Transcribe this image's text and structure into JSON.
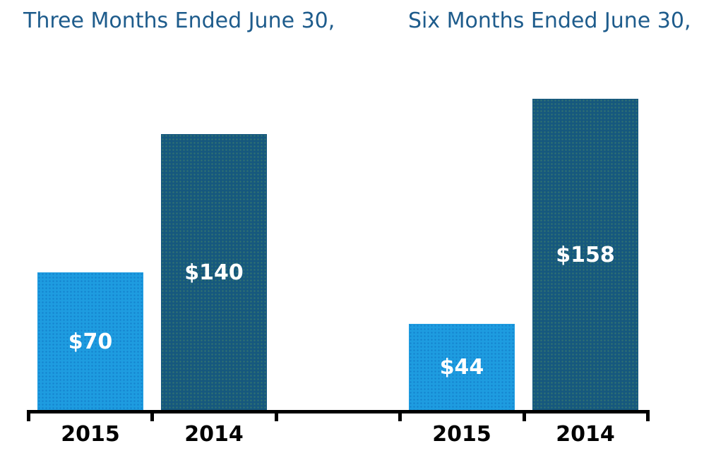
{
  "chart_data": {
    "type": "bar",
    "groups": [
      {
        "title": "Three Months Ended June 30,",
        "categories": [
          "2015",
          "2014"
        ],
        "values": [
          70,
          140
        ],
        "value_labels": [
          "$70",
          "$140"
        ]
      },
      {
        "title": "Six Months Ended June 30,",
        "categories": [
          "2015",
          "2014"
        ],
        "values": [
          44,
          158
        ],
        "value_labels": [
          "$44",
          "$158"
        ]
      }
    ],
    "series_colors": {
      "2015": "#1E9CE0",
      "2014": "#16587E"
    },
    "title_color": "#1E5C8C",
    "axis_color": "#000000",
    "value_label_color": "#FFFFFF",
    "category_label_color": "#000000",
    "background_color": "#FFFFFF",
    "ylim": [
      0,
      175
    ],
    "grid": false,
    "legend": "none",
    "y_axis": "none",
    "value_label_position": "centered-inside-bar"
  }
}
